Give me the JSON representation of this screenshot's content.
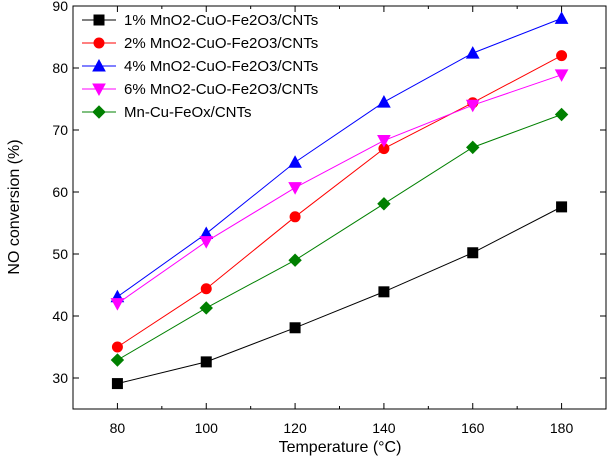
{
  "chart_data": {
    "type": "line",
    "title": "",
    "xlabel": "Temperature (°C)",
    "ylabel": "NO conversion (%)",
    "x": [
      80,
      100,
      120,
      140,
      160,
      180
    ],
    "xlim": [
      70,
      190
    ],
    "ylim": [
      25,
      90
    ],
    "xticks": [
      80,
      100,
      120,
      140,
      160,
      180
    ],
    "yticks": [
      30,
      40,
      50,
      60,
      70,
      80,
      90
    ],
    "legend_position": "top-left",
    "grid": false,
    "series": [
      {
        "name": "1% MnO2-CuO-Fe2O3/CNTs",
        "color": "#000000",
        "marker": "square",
        "values": [
          29.1,
          32.6,
          38.1,
          43.9,
          50.2,
          57.6
        ]
      },
      {
        "name": "2% MnO2-CuO-Fe2O3/CNTs",
        "color": "#ff0000",
        "marker": "circle",
        "values": [
          35.0,
          44.4,
          56.0,
          67.0,
          74.4,
          82.0
        ]
      },
      {
        "name": "4% MnO2-CuO-Fe2O3/CNTs",
        "color": "#0000ff",
        "marker": "triangle-up",
        "values": [
          43.1,
          53.3,
          64.8,
          74.5,
          82.4,
          88.0
        ]
      },
      {
        "name": "6% MnO2-CuO-Fe2O3/CNTs",
        "color": "#ff00ff",
        "marker": "triangle-down",
        "values": [
          42.0,
          52.0,
          60.7,
          68.3,
          74.0,
          78.9
        ]
      },
      {
        "name": "Mn-Cu-FeOx/CNTs",
        "color": "#008000",
        "marker": "diamond",
        "values": [
          32.9,
          41.3,
          49.0,
          58.1,
          67.2,
          72.5
        ]
      }
    ]
  }
}
